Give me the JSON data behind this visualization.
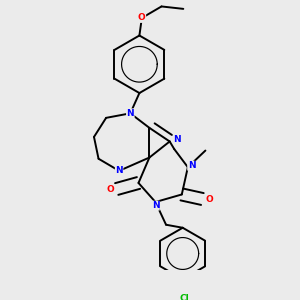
{
  "background_color": "#ebebeb",
  "atom_colors": {
    "N": "#0000ff",
    "O": "#ff0000",
    "Cl": "#00bb00",
    "C": "#000000"
  },
  "bond_color": "#000000",
  "bond_width": 1.4,
  "fig_width": 3.0,
  "fig_height": 3.0,
  "dpi": 100
}
